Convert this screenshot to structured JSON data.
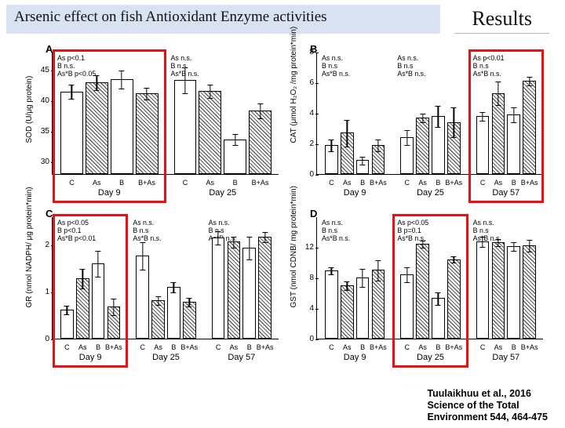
{
  "header": {
    "title": "Arsenic effect on fish Antioxidant Enzyme activities",
    "results": "Results"
  },
  "colors": {
    "header_bg": "#d9e2f0",
    "highlight": "#e81010",
    "bar_border": "#000000",
    "hatch": "#606060"
  },
  "categories": [
    "C",
    "As",
    "B",
    "B+As"
  ],
  "panels": [
    {
      "id": "A",
      "letter": "A",
      "ylabel": "SOD (U/μg protein)",
      "ylim": [
        28,
        48
      ],
      "yticks": [
        30,
        35,
        40,
        45
      ],
      "days": [
        {
          "label": "Day 9",
          "sig": [
            "As p<0.1",
            "B n.s.",
            "As*B p<0.05"
          ],
          "bars": [
            41.5,
            43.0,
            43.5,
            41.2
          ],
          "err": [
            1.2,
            1.3,
            1.5,
            1.0
          ]
        },
        {
          "label": "Day 25",
          "sig": [
            "As n.s.",
            "B n.s",
            "As*B n.s."
          ],
          "bars": [
            43.4,
            41.6,
            33.7,
            38.4
          ],
          "err": [
            2.2,
            1.2,
            1.0,
            1.3
          ]
        }
      ]
    },
    {
      "id": "B",
      "letter": "B",
      "ylabel": "CAT (μmol H₂O₂ /mg protein*min)",
      "ylim": [
        0,
        8
      ],
      "yticks": [
        0,
        2,
        4,
        6,
        8
      ],
      "days": [
        {
          "label": "Day 9",
          "sig": [
            "As n.s.",
            "B n.s",
            "As*B n.s."
          ],
          "bars": [
            1.9,
            2.7,
            0.9,
            1.9
          ],
          "err": [
            0.4,
            0.9,
            0.3,
            0.4
          ]
        },
        {
          "label": "Day 25",
          "sig": [
            "As n.s.",
            "B n.s",
            "As*B n.s."
          ],
          "bars": [
            2.4,
            3.7,
            3.8,
            3.4
          ],
          "err": [
            0.5,
            0.3,
            0.7,
            1.0
          ]
        },
        {
          "label": "Day 57",
          "sig": [
            "As p<0.01",
            "B n.s",
            "As*B n.s."
          ],
          "bars": [
            3.8,
            5.3,
            3.9,
            6.1
          ],
          "err": [
            0.3,
            0.8,
            0.5,
            0.3
          ]
        }
      ]
    },
    {
      "id": "C",
      "letter": "C",
      "ylabel": "GR (nmol NADPH/ μg protein*min)",
      "ylim": [
        0,
        2.6
      ],
      "yticks": [
        0,
        1,
        2
      ],
      "days": [
        {
          "label": "Day 9",
          "sig": [
            "As p<0.05",
            "B p<0.1",
            "As*B p<0.01"
          ],
          "bars": [
            0.62,
            1.28,
            1.6,
            0.68
          ],
          "err": [
            0.1,
            0.22,
            0.28,
            0.18
          ]
        },
        {
          "label": "Day 25",
          "sig": [
            "As n.s.",
            "B n.s",
            "As*B n.s."
          ],
          "bars": [
            1.76,
            0.82,
            1.1,
            0.79
          ],
          "err": [
            0.3,
            0.1,
            0.12,
            0.1
          ]
        },
        {
          "label": "Day 57",
          "sig": [
            "As n.s.",
            "B n.s",
            "As*B n.s."
          ],
          "bars": [
            2.15,
            2.06,
            1.94,
            2.17
          ],
          "err": [
            0.15,
            0.12,
            0.25,
            0.12
          ]
        }
      ]
    },
    {
      "id": "D",
      "letter": "D",
      "ylabel": "GST (nmol CDNB/ mg protein*min)",
      "ylim": [
        0,
        16
      ],
      "yticks": [
        0,
        4,
        8,
        12
      ],
      "days": [
        {
          "label": "Day 9",
          "sig": [
            "As n.s.",
            "B n.s",
            "As*B n.s."
          ],
          "bars": [
            8.9,
            7.0,
            8.0,
            9.0
          ],
          "err": [
            0.5,
            0.6,
            1.2,
            1.4
          ]
        },
        {
          "label": "Day 25",
          "sig": [
            "As p<0.05",
            "B p=0.1",
            "As*B n.s."
          ],
          "bars": [
            8.4,
            12.4,
            5.3,
            10.4
          ],
          "err": [
            1.0,
            0.5,
            0.9,
            0.5
          ]
        },
        {
          "label": "Day 57",
          "sig": [
            "As n.s.",
            "B n.s",
            "As*B n.s."
          ],
          "bars": [
            12.7,
            12.6,
            12.1,
            12.2
          ],
          "err": [
            0.7,
            0.5,
            0.6,
            0.8
          ]
        }
      ]
    }
  ],
  "highlights": [
    {
      "panel": "A",
      "day": 0
    },
    {
      "panel": "B",
      "day": 2
    },
    {
      "panel": "C",
      "day": 0
    },
    {
      "panel": "D",
      "day": 1
    }
  ],
  "citation": {
    "l1": "Tuulaikhuu et al., 2016",
    "l2": "Science of the Total",
    "l3": "Environment 544, 464-475"
  }
}
